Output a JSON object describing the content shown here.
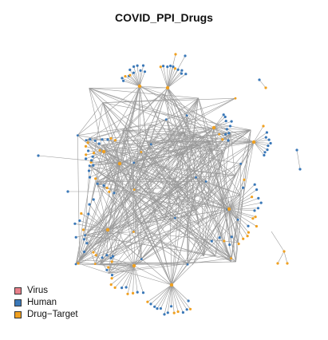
{
  "title": "COVID_PPI_Drugs",
  "colors": {
    "virus": "#e8808a",
    "human": "#3a78b8",
    "drug_target": "#f0a020",
    "edge": "#9a9a9a"
  },
  "legend": [
    {
      "label": "Virus",
      "color": "#e8808a"
    },
    {
      "label": "Human",
      "color": "#3a78b8"
    },
    {
      "label": "Drug−Target",
      "color": "#f0a020"
    }
  ]
}
